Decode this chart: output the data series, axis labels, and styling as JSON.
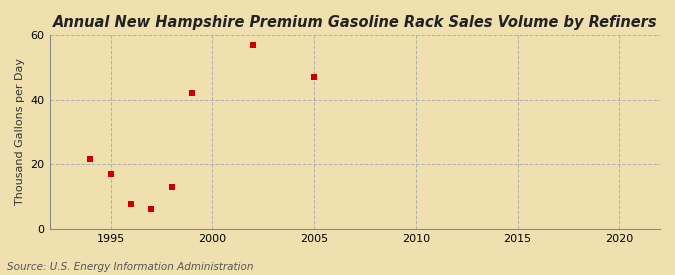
{
  "title": "Annual New Hampshire Premium Gasoline Rack Sales Volume by Refiners",
  "ylabel": "Thousand Gallons per Day",
  "source": "Source: U.S. Energy Information Administration",
  "background_color": "#f0e0b0",
  "plot_background_color": "#f0e0b0",
  "x_data": [
    1994,
    1995,
    1996,
    1997,
    1998,
    1999,
    2002,
    2005
  ],
  "y_data": [
    21.5,
    17.0,
    7.5,
    6.0,
    13.0,
    42.0,
    57.0,
    47.0
  ],
  "marker_color": "#cc0000",
  "marker_style": "s",
  "marker_size": 4,
  "xlim": [
    1992,
    2022
  ],
  "ylim": [
    0,
    60
  ],
  "xticks": [
    1995,
    2000,
    2005,
    2010,
    2015,
    2020
  ],
  "yticks": [
    0,
    20,
    40,
    60
  ],
  "grid_color": "#aaaaaa",
  "grid_style": "--",
  "title_fontsize": 10.5,
  "label_fontsize": 8,
  "tick_fontsize": 8,
  "source_fontsize": 7.5
}
